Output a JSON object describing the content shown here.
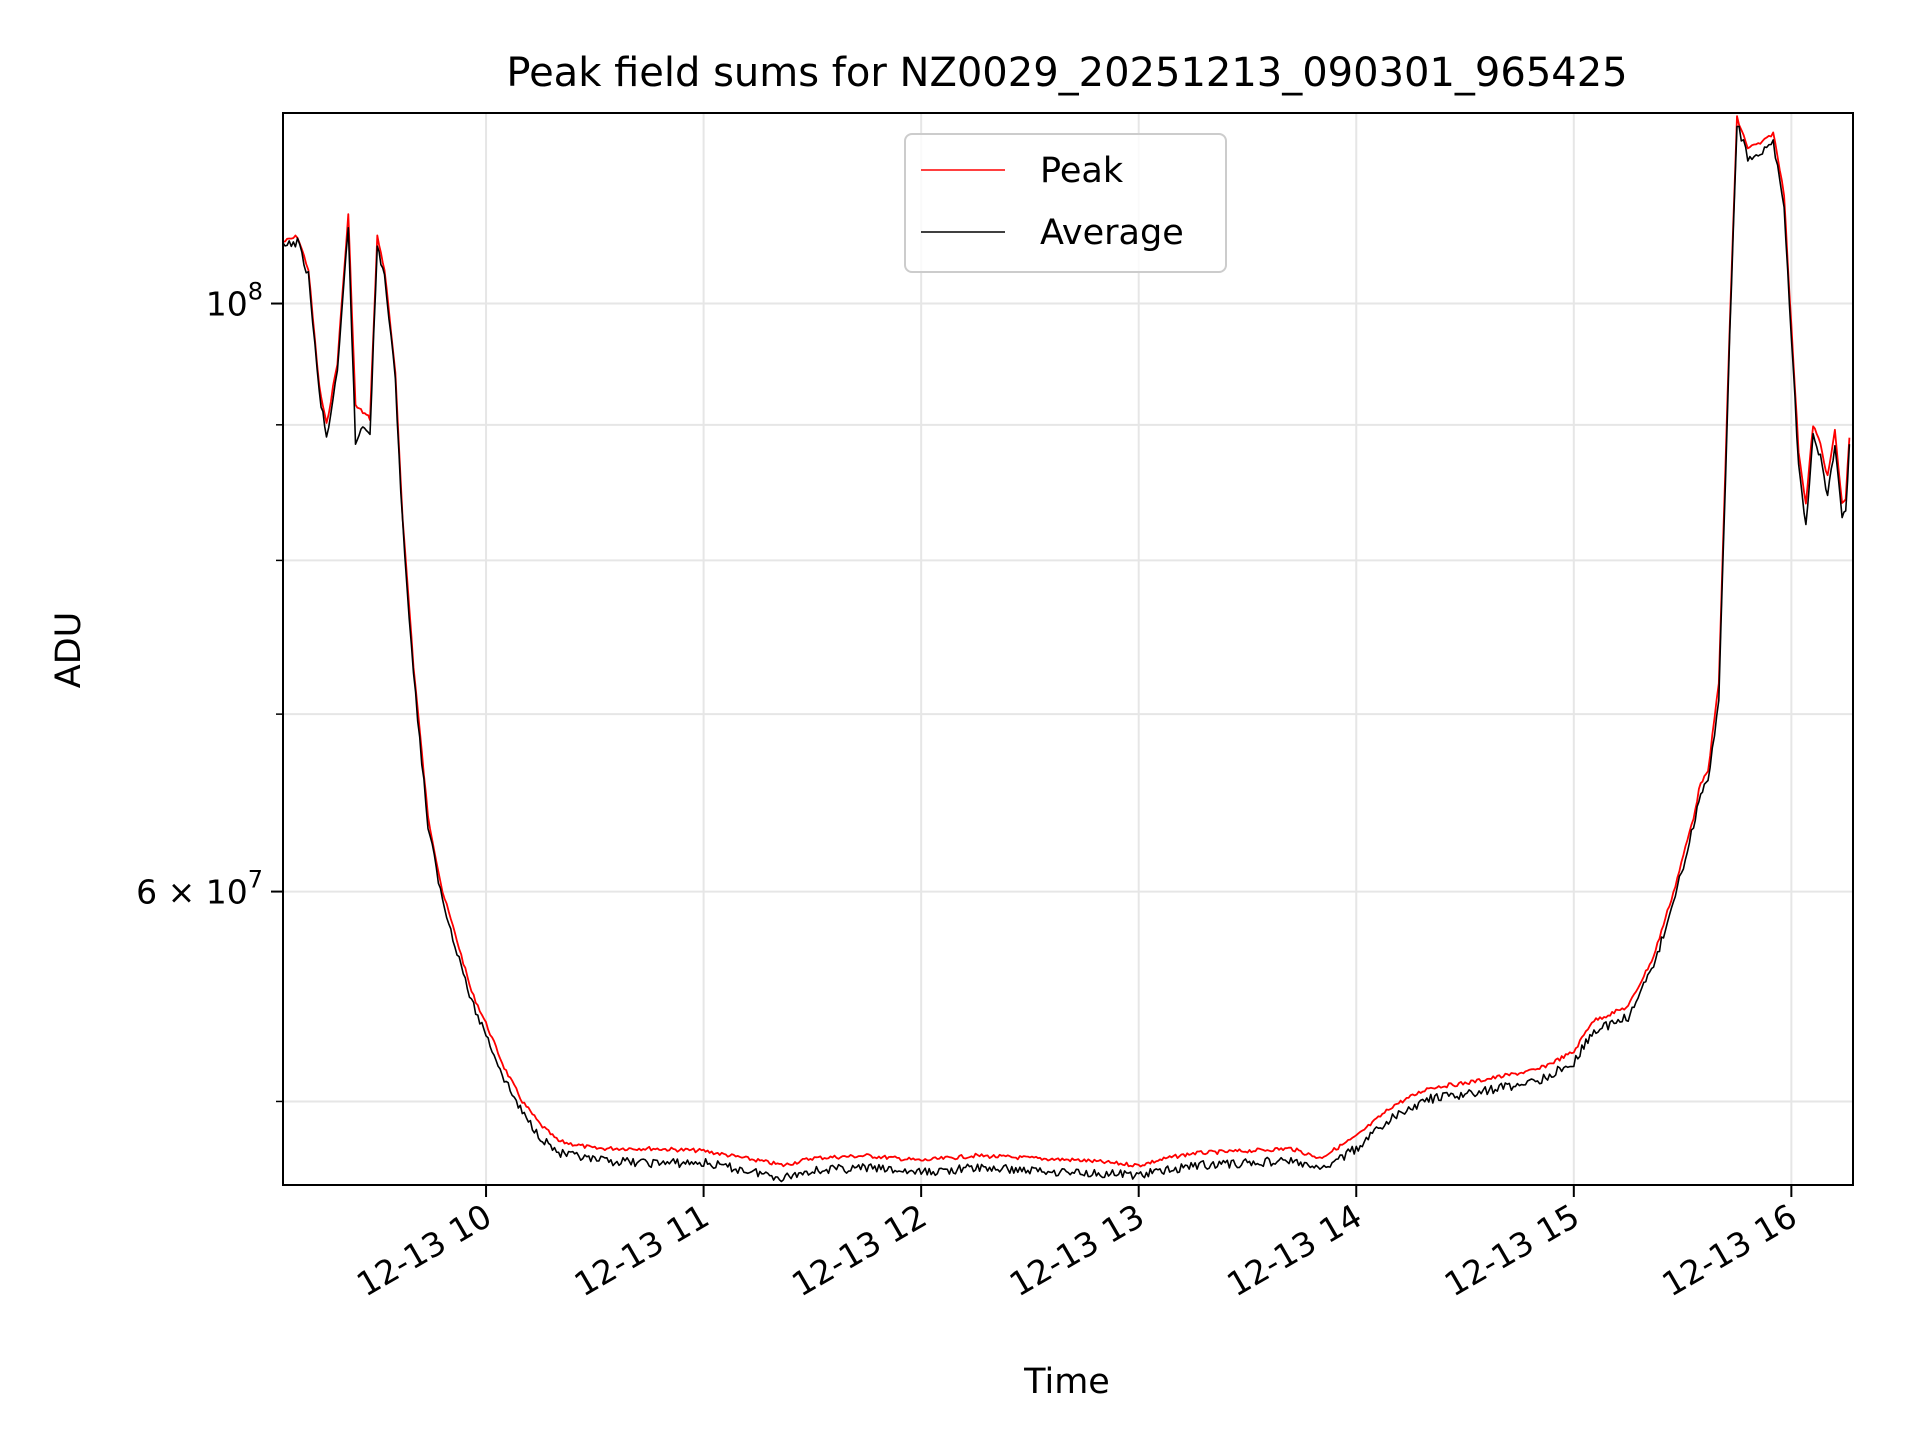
{
  "chart_data": {
    "type": "line",
    "title": "Peak field sums for NZ0029_20251213_090301_965425",
    "xlabel": "Time",
    "ylabel": "ADU",
    "y_scale": "log",
    "grid": true,
    "legend_position": "top-center",
    "xlim": [
      "2025-12-13 09:04",
      "2025-12-13 16:17"
    ],
    "ylim": [
      46500000,
      118000000
    ],
    "x_ticks": [
      {
        "t": "2025-12-13 10:00",
        "label": "12-13 10"
      },
      {
        "t": "2025-12-13 11:00",
        "label": "12-13 11"
      },
      {
        "t": "2025-12-13 12:00",
        "label": "12-13 12"
      },
      {
        "t": "2025-12-13 13:00",
        "label": "12-13 13"
      },
      {
        "t": "2025-12-13 14:00",
        "label": "12-13 14"
      },
      {
        "t": "2025-12-13 15:00",
        "label": "12-13 15"
      },
      {
        "t": "2025-12-13 16:00",
        "label": "12-13 16"
      }
    ],
    "y_ticks": [
      {
        "value": 100000000,
        "base": "10",
        "exp": "8"
      },
      {
        "value": 60000000,
        "base": "6 × 10",
        "exp": "7"
      }
    ],
    "y_minor_ticks": [
      50000000,
      70000000,
      80000000,
      90000000
    ],
    "series": [
      {
        "name": "Peak",
        "color": "#ff0000",
        "x": [
          "2025-12-13 09:04",
          "2025-12-13 09:08",
          "2025-12-13 09:11",
          "2025-12-13 09:14",
          "2025-12-13 09:16",
          "2025-12-13 09:19",
          "2025-12-13 09:22",
          "2025-12-13 09:24",
          "2025-12-13 09:26",
          "2025-12-13 09:28",
          "2025-12-13 09:30",
          "2025-12-13 09:32",
          "2025-12-13 09:35",
          "2025-12-13 09:37",
          "2025-12-13 09:40",
          "2025-12-13 09:44",
          "2025-12-13 09:48",
          "2025-12-13 09:52",
          "2025-12-13 09:56",
          "2025-12-13 10:00",
          "2025-12-13 10:05",
          "2025-12-13 10:10",
          "2025-12-13 10:15",
          "2025-12-13 10:20",
          "2025-12-13 10:30",
          "2025-12-13 10:45",
          "2025-12-13 11:00",
          "2025-12-13 11:15",
          "2025-12-13 11:22",
          "2025-12-13 11:30",
          "2025-12-13 11:45",
          "2025-12-13 12:00",
          "2025-12-13 12:15",
          "2025-12-13 12:30",
          "2025-12-13 12:45",
          "2025-12-13 13:00",
          "2025-12-13 13:08",
          "2025-12-13 13:15",
          "2025-12-13 13:30",
          "2025-12-13 13:42",
          "2025-12-13 13:50",
          "2025-12-13 14:00",
          "2025-12-13 14:10",
          "2025-12-13 14:20",
          "2025-12-13 14:30",
          "2025-12-13 14:40",
          "2025-12-13 14:50",
          "2025-12-13 15:00",
          "2025-12-13 15:05",
          "2025-12-13 15:15",
          "2025-12-13 15:22",
          "2025-12-13 15:28",
          "2025-12-13 15:33",
          "2025-12-13 15:35",
          "2025-12-13 15:37",
          "2025-12-13 15:40",
          "2025-12-13 15:43",
          "2025-12-13 15:45",
          "2025-12-13 15:48",
          "2025-12-13 15:52",
          "2025-12-13 15:55",
          "2025-12-13 15:58",
          "2025-12-13 16:00",
          "2025-12-13 16:02",
          "2025-12-13 16:04",
          "2025-12-13 16:06",
          "2025-12-13 16:08",
          "2025-12-13 16:10",
          "2025-12-13 16:12",
          "2025-12-13 16:14",
          "2025-12-13 16:15",
          "2025-12-13 16:16"
        ],
        "values": [
          105500000,
          106000000,
          103000000,
          93000000,
          90000000,
          95000000,
          108000000,
          91500000,
          91000000,
          90500000,
          106000000,
          103000000,
          94000000,
          83000000,
          73000000,
          64000000,
          60000000,
          57500000,
          55000000,
          53500000,
          51500000,
          50000000,
          49000000,
          48300000,
          48000000,
          48000000,
          47900000,
          47500000,
          47300000,
          47600000,
          47700000,
          47500000,
          47700000,
          47600000,
          47500000,
          47300000,
          47600000,
          47800000,
          47900000,
          48000000,
          47600000,
          48500000,
          49800000,
          50600000,
          50800000,
          51100000,
          51400000,
          52200000,
          53600000,
          54300000,
          56700000,
          60300000,
          64000000,
          66000000,
          66500000,
          72000000,
          98000000,
          117500000,
          114500000,
          115000000,
          116000000,
          110000000,
          98000000,
          88000000,
          84000000,
          90000000,
          88500000,
          86000000,
          89500000,
          84000000,
          84500000,
          89000000
        ]
      },
      {
        "name": "Average",
        "color": "#000000",
        "x": [
          "2025-12-13 09:04",
          "2025-12-13 09:08",
          "2025-12-13 09:11",
          "2025-12-13 09:14",
          "2025-12-13 09:16",
          "2025-12-13 09:19",
          "2025-12-13 09:22",
          "2025-12-13 09:24",
          "2025-12-13 09:26",
          "2025-12-13 09:28",
          "2025-12-13 09:30",
          "2025-12-13 09:32",
          "2025-12-13 09:35",
          "2025-12-13 09:37",
          "2025-12-13 09:40",
          "2025-12-13 09:44",
          "2025-12-13 09:48",
          "2025-12-13 09:52",
          "2025-12-13 09:56",
          "2025-12-13 10:00",
          "2025-12-13 10:05",
          "2025-12-13 10:10",
          "2025-12-13 10:15",
          "2025-12-13 10:20",
          "2025-12-13 10:30",
          "2025-12-13 10:45",
          "2025-12-13 11:00",
          "2025-12-13 11:15",
          "2025-12-13 11:22",
          "2025-12-13 11:30",
          "2025-12-13 11:45",
          "2025-12-13 12:00",
          "2025-12-13 12:15",
          "2025-12-13 12:30",
          "2025-12-13 12:45",
          "2025-12-13 13:00",
          "2025-12-13 13:08",
          "2025-12-13 13:15",
          "2025-12-13 13:30",
          "2025-12-13 13:42",
          "2025-12-13 13:50",
          "2025-12-13 14:00",
          "2025-12-13 14:10",
          "2025-12-13 14:20",
          "2025-12-13 14:30",
          "2025-12-13 14:40",
          "2025-12-13 14:50",
          "2025-12-13 15:00",
          "2025-12-13 15:05",
          "2025-12-13 15:15",
          "2025-12-13 15:22",
          "2025-12-13 15:28",
          "2025-12-13 15:33",
          "2025-12-13 15:35",
          "2025-12-13 15:37",
          "2025-12-13 15:40",
          "2025-12-13 15:43",
          "2025-12-13 15:45",
          "2025-12-13 15:48",
          "2025-12-13 15:52",
          "2025-12-13 15:55",
          "2025-12-13 15:58",
          "2025-12-13 16:00",
          "2025-12-13 16:02",
          "2025-12-13 16:04",
          "2025-12-13 16:06",
          "2025-12-13 16:08",
          "2025-12-13 16:10",
          "2025-12-13 16:12",
          "2025-12-13 16:14",
          "2025-12-13 16:15",
          "2025-12-13 16:16"
        ],
        "values": [
          105000000,
          105500000,
          102500000,
          92500000,
          89000000,
          94000000,
          107000000,
          88500000,
          90000000,
          89500000,
          105000000,
          102500000,
          93500000,
          82500000,
          72500000,
          63500000,
          59500000,
          57000000,
          54500000,
          53000000,
          51000000,
          49500000,
          48500000,
          47800000,
          47500000,
          47400000,
          47400000,
          47000000,
          46800000,
          47100000,
          47200000,
          47000000,
          47200000,
          47100000,
          47000000,
          46900000,
          47100000,
          47300000,
          47400000,
          47500000,
          47100000,
          48000000,
          49300000,
          50100000,
          50300000,
          50600000,
          50900000,
          51700000,
          53100000,
          53800000,
          56200000,
          59800000,
          63500000,
          65500000,
          66000000,
          71000000,
          97000000,
          117000000,
          113500000,
          114000000,
          115000000,
          109000000,
          97000000,
          87000000,
          82500000,
          89000000,
          87500000,
          84500000,
          88500000,
          83000000,
          83500000,
          88500000
        ]
      }
    ]
  }
}
